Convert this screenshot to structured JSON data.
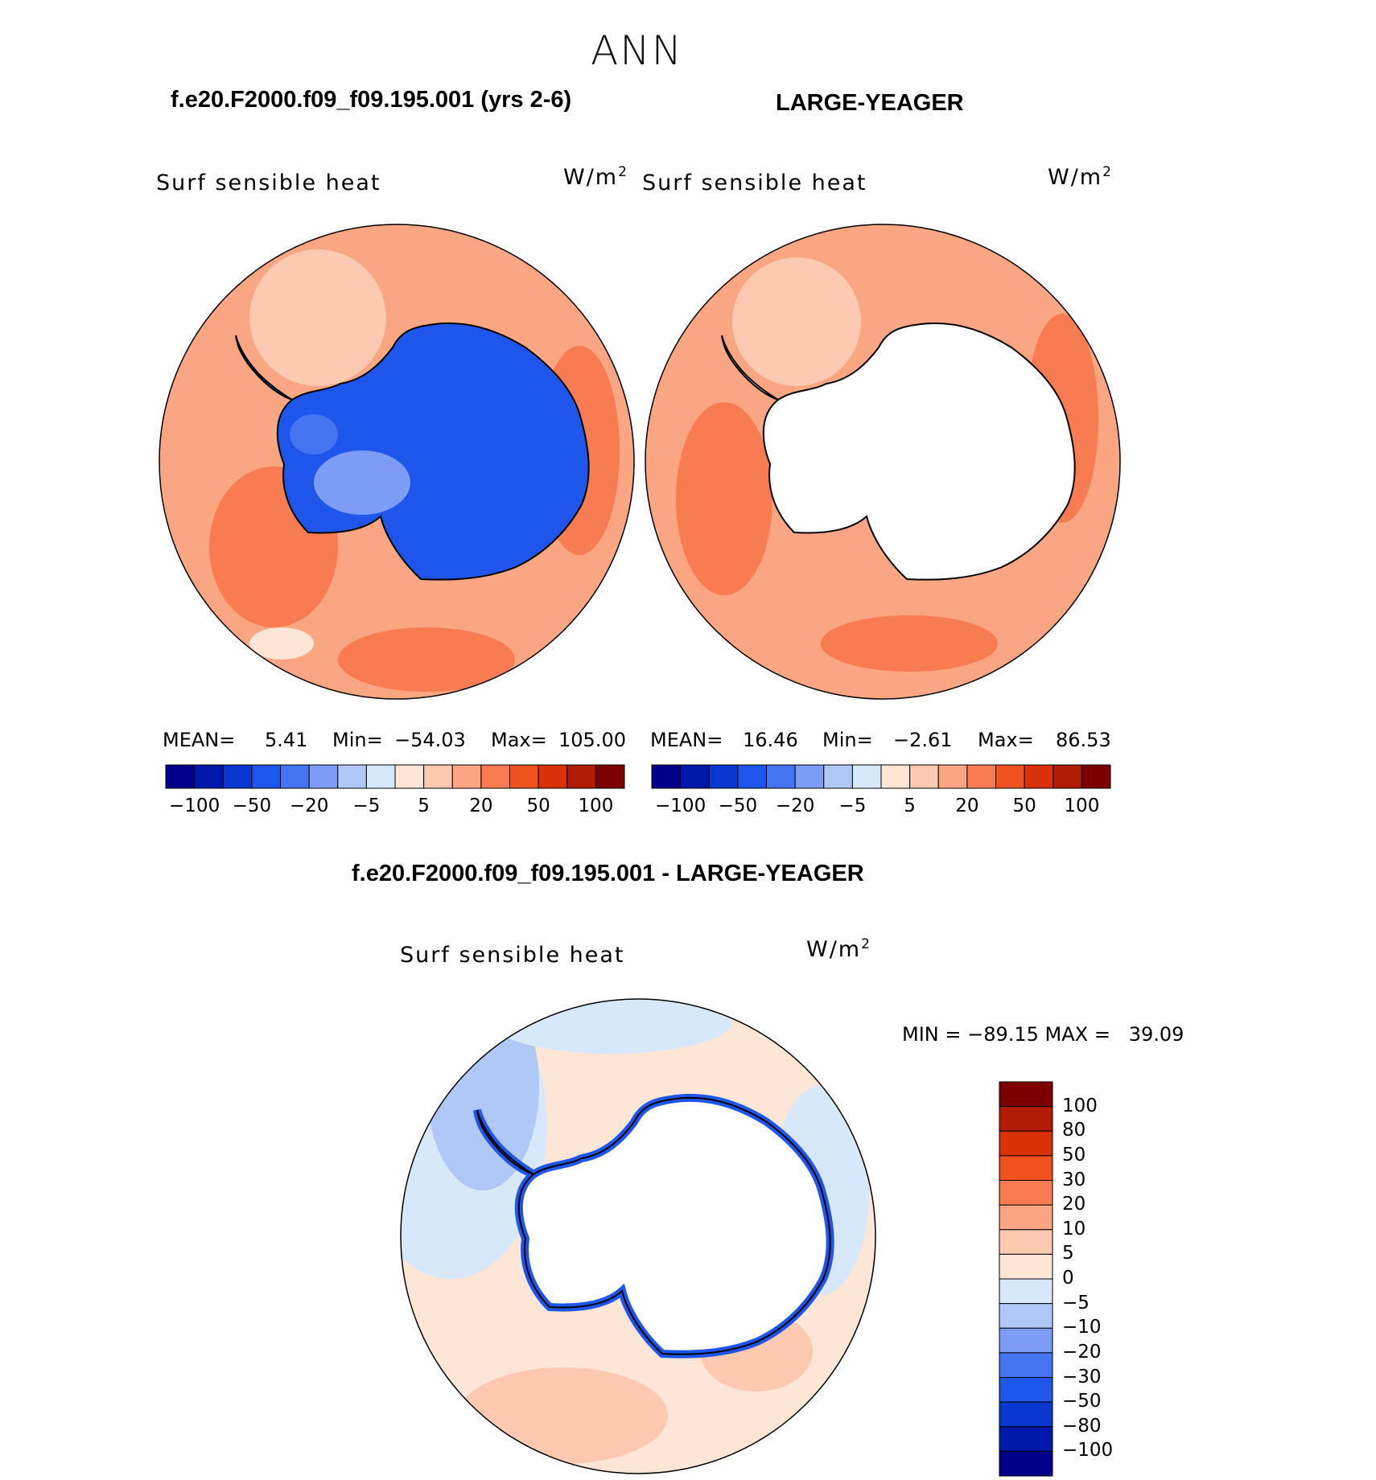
{
  "title": "ANN",
  "case_a": "f.e20.F2000.f09_f09.195.001 (yrs 2-6)",
  "case_b": "LARGE-YEAGER",
  "diff_title": "f.e20.F2000.f09_f09.195.001 - LARGE-YEAGER",
  "variable": "Surf sensible heat",
  "units_base": "W/m",
  "units_sup": "2",
  "panel_a": {
    "mean_label": "MEAN=",
    "mean": "5.41",
    "min_label": "Min=",
    "min": "−54.03",
    "max_label": "Max=",
    "max": "105.00"
  },
  "panel_b": {
    "mean_label": "MEAN=",
    "mean": "16.46",
    "min_label": "Min=",
    "min": "−2.61",
    "max_label": "Max=",
    "max": "86.53"
  },
  "panel_diff": {
    "minmax": "MIN = −89.15 MAX =   39.09"
  },
  "colorbar_top": {
    "colors": [
      "#00008b",
      "#0019aa",
      "#0a37d0",
      "#1e55ea",
      "#4474f0",
      "#7d9cf6",
      "#b0c8f8",
      "#d8e8fb",
      "#fde6d6",
      "#fdc9b0",
      "#fba682",
      "#f97b52",
      "#f0521f",
      "#d93208",
      "#b01c05",
      "#7d0000"
    ],
    "tick_labels": [
      "−100",
      "−50",
      "−20",
      "−5",
      "5",
      "20",
      "50",
      "100"
    ]
  },
  "colorbar_diff": {
    "colors": [
      "#7d0000",
      "#b01c05",
      "#d93208",
      "#f0521f",
      "#f97b52",
      "#fba682",
      "#fdc9b0",
      "#fde6d6",
      "#d8e8fb",
      "#b0c8f8",
      "#7d9cf6",
      "#4474f0",
      "#1e55ea",
      "#0a37d0",
      "#0019aa",
      "#00008b"
    ],
    "tick_labels": [
      "100",
      "80",
      "50",
      "30",
      "20",
      "10",
      "5",
      "0",
      "−5",
      "−10",
      "−20",
      "−30",
      "−50",
      "−80",
      "−100"
    ]
  },
  "map_colors": {
    "ocean_warm": "#fba682",
    "ocean_hot": "#f97b52",
    "ocean_light": "#fdc9b0",
    "ocean_pale": "#fde6d6",
    "ice_blue": "#1e55ea",
    "ice_mid": "#4474f0",
    "ice_light": "#7d9cf6",
    "neg_light": "#d8e8fb",
    "neg_mid": "#b0c8f8"
  }
}
